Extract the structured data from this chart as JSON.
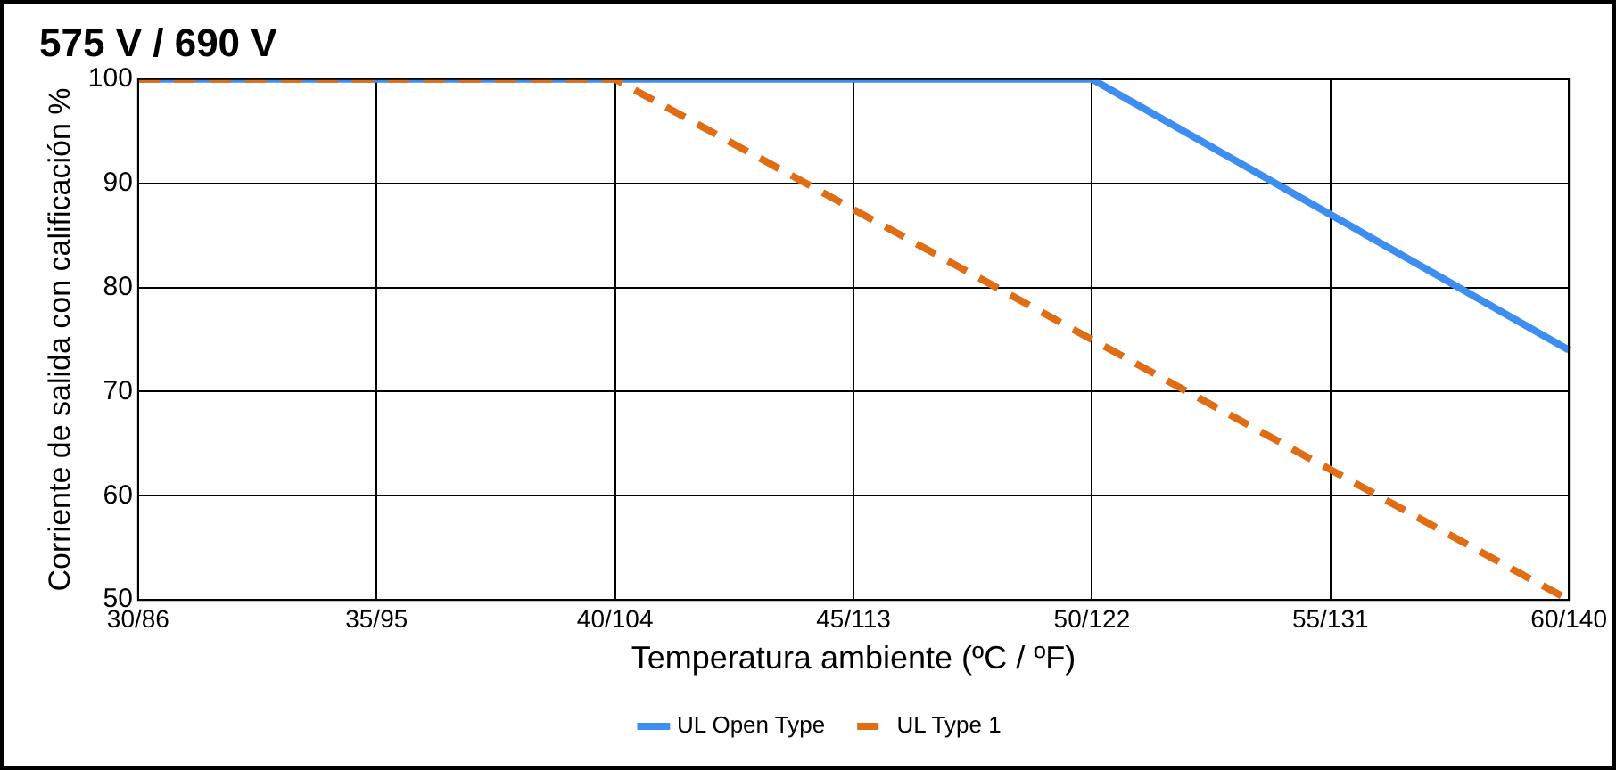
{
  "chart_data": {
    "type": "line",
    "title": "575 V / 690 V",
    "xlabel": "Temperatura ambiente (ºC / ºF)",
    "ylabel": "Corriente de salida con calificación %",
    "categories": [
      "30/86",
      "35/95",
      "40/104",
      "45/113",
      "50/122",
      "55/131",
      "60/140"
    ],
    "ylim": [
      50,
      100
    ],
    "yticks": [
      50,
      60,
      70,
      80,
      90,
      100
    ],
    "grid": true,
    "legend": "bottom",
    "marker": "none",
    "series": [
      {
        "name": "UL Open Type",
        "color": "#3d8ef0",
        "values": [
          100,
          100,
          100,
          100,
          100,
          87,
          74
        ],
        "line_style": "solid"
      },
      {
        "name": "UL Type 1",
        "color": "#e06c14",
        "values": [
          100,
          100,
          100,
          87.5,
          75,
          62.5,
          50
        ],
        "line_style": "dashed"
      }
    ]
  }
}
